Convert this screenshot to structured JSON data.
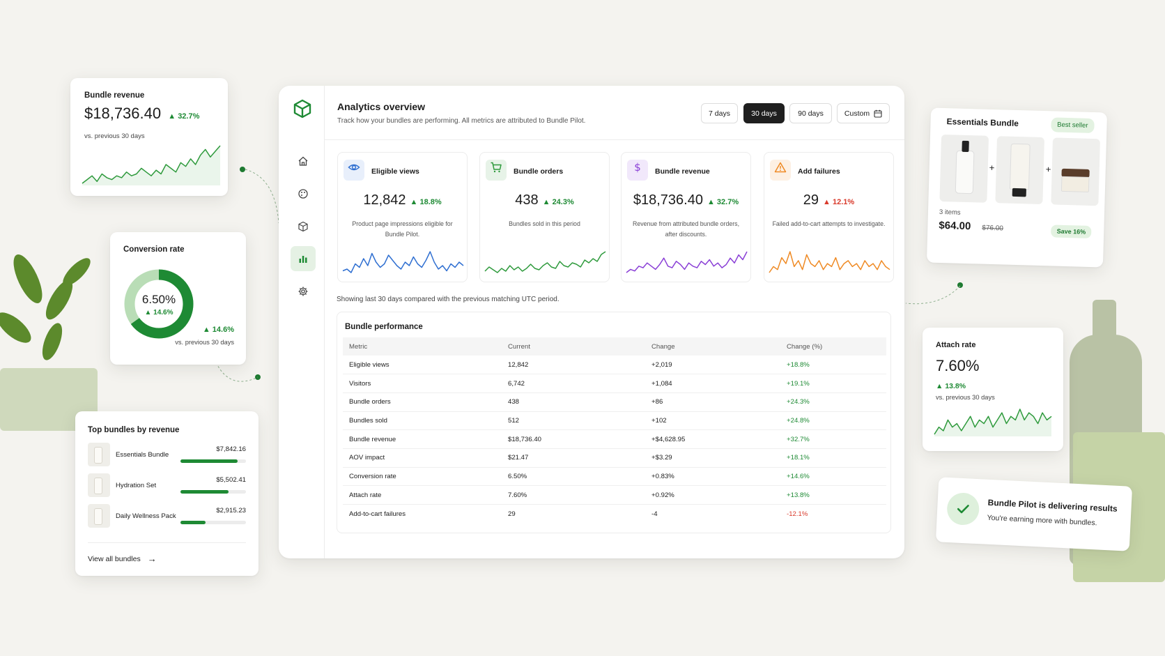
{
  "dashboard": {
    "title": "Analytics overview",
    "subtitle": "Track how your bundles are performing. All metrics are attributed to Bundle Pilot.",
    "ranges": [
      {
        "label": "7 days",
        "active": false
      },
      {
        "label": "30 days",
        "active": true
      },
      {
        "label": "90 days",
        "active": false
      },
      {
        "label": "Custom",
        "active": false
      }
    ],
    "nav_icons": [
      "home-icon",
      "palette-icon",
      "box-icon",
      "bar-chart-icon",
      "gear-icon"
    ],
    "kpis": [
      {
        "label": "Eligible views",
        "value": "12,842",
        "change": "18.8%",
        "trend": "up",
        "desc": "Product page impressions eligible for Bundle Pilot.",
        "icon": "eye-icon",
        "color": "#2f6fd1",
        "spark": [
          5,
          6,
          4,
          9,
          7,
          12,
          8,
          15,
          10,
          7,
          9,
          14,
          11,
          8,
          6,
          10,
          8,
          13,
          9,
          7,
          11,
          16,
          10,
          6,
          8,
          5,
          9,
          7,
          10,
          8
        ]
      },
      {
        "label": "Bundle orders",
        "value": "438",
        "change": "24.3%",
        "trend": "up",
        "desc": "Bundles sold in this period",
        "icon": "cart-icon",
        "color": "#2e9a3c",
        "spark": [
          6,
          9,
          7,
          5,
          8,
          6,
          10,
          7,
          9,
          6,
          8,
          11,
          8,
          7,
          10,
          12,
          9,
          8,
          13,
          10,
          9,
          12,
          11,
          9,
          14,
          12,
          15,
          13,
          18,
          20
        ]
      },
      {
        "label": "Bundle revenue",
        "value": "$18,736.40",
        "change": "32.7%",
        "trend": "up",
        "desc": "Revenue from attributed bundle orders, after discounts.",
        "icon": "dollar-icon",
        "color": "#8a3fd6",
        "spark": [
          5,
          7,
          6,
          9,
          8,
          11,
          9,
          7,
          10,
          14,
          9,
          8,
          12,
          10,
          7,
          11,
          9,
          8,
          12,
          10,
          13,
          9,
          11,
          8,
          10,
          14,
          11,
          16,
          13,
          18
        ]
      },
      {
        "label": "Add failures",
        "value": "29",
        "change": "12.1%",
        "trend": "down",
        "desc": "Failed add-to-cart attempts to investigate.",
        "icon": "warning-icon",
        "color": "#ef8a24",
        "spark": [
          6,
          8,
          7,
          11,
          9,
          13,
          8,
          10,
          7,
          12,
          9,
          8,
          10,
          7,
          9,
          8,
          11,
          7,
          9,
          10,
          8,
          9,
          7,
          10,
          8,
          9,
          7,
          10,
          8,
          7
        ]
      }
    ],
    "showing": "Showing last 30 days compared with the previous matching UTC period.",
    "performance": {
      "title": "Bundle performance",
      "columns": [
        "Metric",
        "Current",
        "Change",
        "Change (%)"
      ],
      "rows": [
        [
          "Eligible views",
          "12,842",
          "+2,019",
          "+18.8%"
        ],
        [
          "Visitors",
          "6,742",
          "+1,084",
          "+19.1%"
        ],
        [
          "Bundle orders",
          "438",
          "+86",
          "+24.3%"
        ],
        [
          "Bundles sold",
          "512",
          "+102",
          "+24.8%"
        ],
        [
          "Bundle revenue",
          "$18,736.40",
          "+$4,628.95",
          "+32.7%"
        ],
        [
          "AOV impact",
          "$21.47",
          "+$3.29",
          "+18.1%"
        ],
        [
          "Conversion rate",
          "6.50%",
          "+0.83%",
          "+14.6%"
        ],
        [
          "Attach rate",
          "7.60%",
          "+0.92%",
          "+13.8%"
        ],
        [
          "Add-to-cart failures",
          "29",
          "-4",
          "-12.1%"
        ]
      ]
    }
  },
  "revenue_card": {
    "title": "Bundle revenue",
    "value": "$18,736.40",
    "change": "32.7%",
    "sub": "vs. previous 30 days",
    "spark": [
      4,
      6,
      8,
      5,
      9,
      7,
      6,
      8,
      7,
      10,
      8,
      9,
      12,
      10,
      8,
      11,
      9,
      14,
      12,
      10,
      15,
      13,
      17,
      14,
      19,
      22,
      18,
      21,
      24
    ]
  },
  "conversion_card": {
    "title": "Conversion rate",
    "value": "6.50%",
    "inner_change": "14.6%",
    "change": "14.6%",
    "sub": "vs. previous 30 days",
    "ring_fraction": 0.65
  },
  "top_bundles": {
    "title": "Top bundles by revenue",
    "items": [
      {
        "name": "Essentials Bundle",
        "revenue": "$7,842.16",
        "fraction": 0.87
      },
      {
        "name": "Hydration Set",
        "revenue": "$5,502.41",
        "fraction": 0.73
      },
      {
        "name": "Daily Wellness Pack",
        "revenue": "$2,915.23",
        "fraction": 0.38
      }
    ],
    "link": "View all bundles"
  },
  "essentials_card": {
    "title": "Essentials Bundle",
    "badge": "Best seller",
    "count": "3 items",
    "price": "$64.00",
    "old_price": "$76.00",
    "save": "Save 16%"
  },
  "attach_card": {
    "title": "Attach rate",
    "value": "7.60%",
    "change": "13.8%",
    "sub": "vs. previous 30 days",
    "spark": [
      5,
      7,
      6,
      9,
      7,
      8,
      6,
      8,
      10,
      7,
      9,
      8,
      10,
      7,
      9,
      11,
      8,
      10,
      9,
      12,
      9,
      11,
      10,
      8,
      11,
      9,
      10
    ]
  },
  "toast": {
    "title": "Bundle Pilot is delivering results",
    "sub": "You're earning more with bundles."
  },
  "colors": {
    "accent": "#1e8a34",
    "dark": "#1f1f1f",
    "negative": "#d93a2b"
  }
}
